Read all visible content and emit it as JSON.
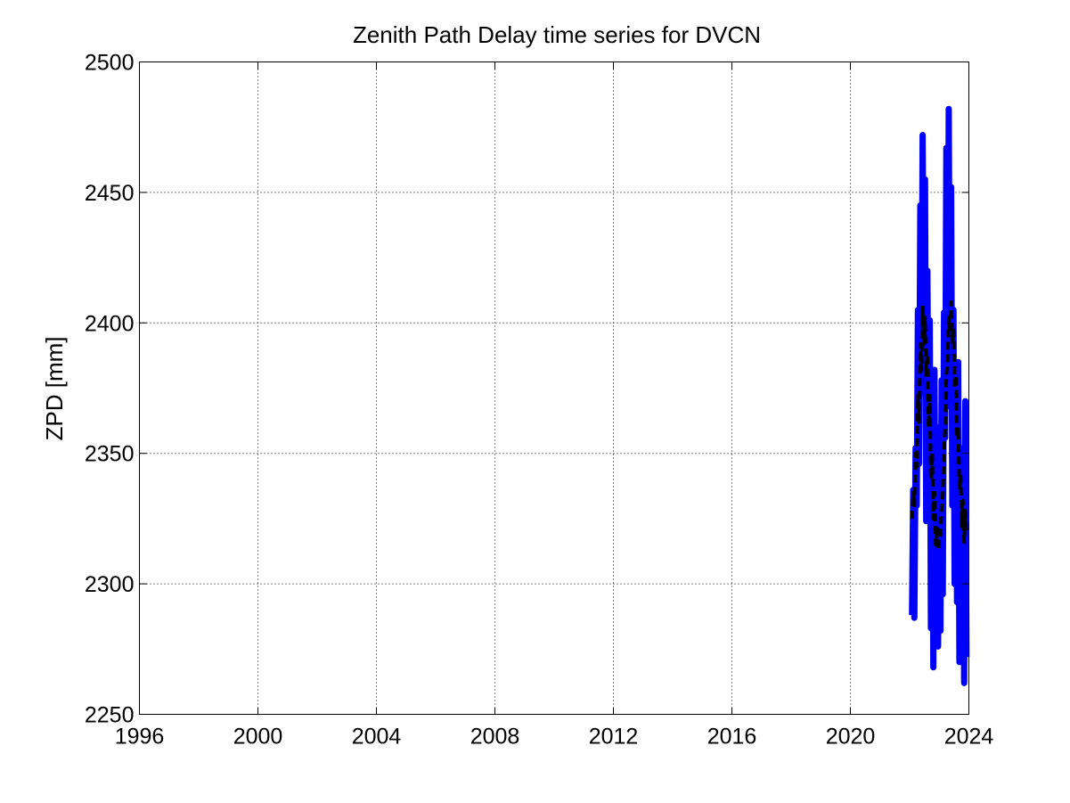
{
  "chart_data": {
    "type": "line",
    "title": "Zenith Path Delay time series for DVCN",
    "xlabel": "",
    "ylabel": "ZPD [mm]",
    "xlim": [
      1996,
      2024
    ],
    "ylim": [
      2250,
      2500
    ],
    "xticks": [
      "1996",
      "2000",
      "2004",
      "2008",
      "2012",
      "2016",
      "2020",
      "2024"
    ],
    "yticks": [
      "2250",
      "2300",
      "2350",
      "2400",
      "2450",
      "2500"
    ],
    "grid": true,
    "colors": {
      "observed": "#0000ff",
      "model": "#000000"
    },
    "series": [
      {
        "style": "solid",
        "color": "#0000ff",
        "x": [
          2022.08,
          2022.12,
          2022.16,
          2022.2,
          2022.24,
          2022.28,
          2022.32,
          2022.36,
          2022.4,
          2022.44,
          2022.48,
          2022.52,
          2022.56,
          2022.6,
          2022.64,
          2022.68,
          2022.72,
          2022.76,
          2022.8,
          2022.84,
          2022.88,
          2022.92,
          2022.96,
          2023.0,
          2023.04,
          2023.08,
          2023.12,
          2023.16,
          2023.2,
          2023.24,
          2023.28,
          2023.32,
          2023.36,
          2023.4,
          2023.44,
          2023.48,
          2023.52,
          2023.56,
          2023.6,
          2023.64,
          2023.68,
          2023.72,
          2023.76,
          2023.8,
          2023.84,
          2023.88,
          2023.92
        ],
        "y": [
          2288,
          2336,
          2287,
          2352,
          2330,
          2405,
          2346,
          2445,
          2373,
          2472,
          2385,
          2455,
          2324,
          2420,
          2347,
          2401,
          2283,
          2380,
          2268,
          2382,
          2290,
          2360,
          2276,
          2342,
          2282,
          2378,
          2296,
          2404,
          2356,
          2467,
          2370,
          2482,
          2368,
          2452,
          2330,
          2405,
          2300,
          2370,
          2293,
          2385,
          2270,
          2352,
          2300,
          2350,
          2262,
          2370,
          2272
        ]
      },
      {
        "style": "dashed",
        "color": "#000000",
        "x": [
          2022.08,
          2022.12,
          2022.16,
          2022.2,
          2022.24,
          2022.28,
          2022.32,
          2022.36,
          2022.4,
          2022.44,
          2022.48,
          2022.52,
          2022.56,
          2022.6,
          2022.64,
          2022.68,
          2022.72,
          2022.76,
          2022.8,
          2022.84,
          2022.88,
          2022.92,
          2022.96,
          2023.0,
          2023.04,
          2023.08,
          2023.12,
          2023.16,
          2023.2,
          2023.24,
          2023.28,
          2023.32,
          2023.36,
          2023.4,
          2023.44,
          2023.48,
          2023.52,
          2023.56,
          2023.6,
          2023.64,
          2023.68,
          2023.72,
          2023.76,
          2023.8,
          2023.84,
          2023.88,
          2023.92
        ],
        "y": [
          2325,
          2335,
          2330,
          2350,
          2345,
          2372,
          2362,
          2392,
          2382,
          2406,
          2392,
          2402,
          2380,
          2388,
          2360,
          2372,
          2340,
          2350,
          2325,
          2335,
          2315,
          2322,
          2313,
          2318,
          2318,
          2330,
          2334,
          2352,
          2360,
          2380,
          2385,
          2402,
          2396,
          2408,
          2392,
          2398,
          2375,
          2380,
          2356,
          2360,
          2336,
          2342,
          2322,
          2332,
          2316,
          2328,
          2320
        ]
      }
    ]
  }
}
